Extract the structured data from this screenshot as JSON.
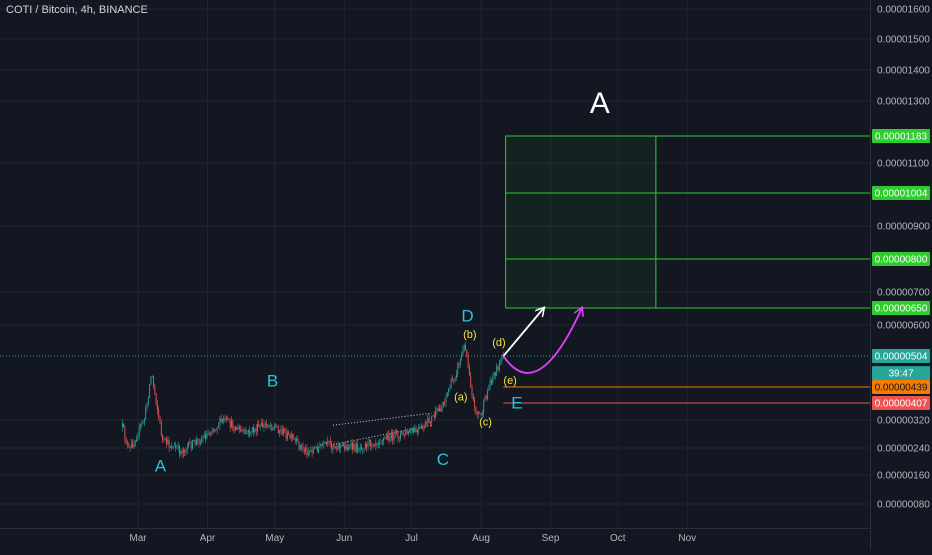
{
  "header": {
    "symbol_title": "COTI / Bitcoin, 4h, BINANCE"
  },
  "colors": {
    "background": "#131722",
    "grid": "#1f2430",
    "up": "#26a69a",
    "down": "#ef5350",
    "wave_label": "#26c6da",
    "sub_wave_label": "#f5e342",
    "target_zone": "#2ecc2e",
    "price_line": "#26a69a",
    "projection_white": "#ffffff",
    "projection_magenta": "#e040fb"
  },
  "chart_data": {
    "type": "candlestick",
    "timeframe": "4h",
    "ylim": [
      4e-07,
      1.65e-05
    ],
    "y_ticks": [
      "0.00001600",
      "0.00001500",
      "0.00001400",
      "0.00001300",
      "0.00001100",
      "0.00000900",
      "0.00000700",
      "0.00000600",
      "0.00000320",
      "0.00000240",
      "0.00000160",
      "0.00000080"
    ],
    "x_ticks": [
      "Mar",
      "Apr",
      "May",
      "Jun",
      "Jul",
      "Aug",
      "Sep",
      "Oct",
      "Nov"
    ],
    "price_path": [
      {
        "date": "Feb 23",
        "price": 3e-06
      },
      {
        "date": "Feb 26",
        "price": 2.3e-06
      },
      {
        "date": "Mar 4",
        "price": 3.3e-06
      },
      {
        "date": "Mar 7",
        "price": 4.7e-06
      },
      {
        "date": "Mar 12",
        "price": 2.6e-06
      },
      {
        "date": "Mar 20",
        "price": 2.3e-06
      },
      {
        "date": "Mar 30",
        "price": 2.7e-06
      },
      {
        "date": "Apr 8",
        "price": 3.2e-06
      },
      {
        "date": "Apr 18",
        "price": 2.8e-06
      },
      {
        "date": "Apr 28",
        "price": 3.1e-06
      },
      {
        "date": "May 4",
        "price": 2.9e-06
      },
      {
        "date": "May 15",
        "price": 2.3e-06
      },
      {
        "date": "May 25",
        "price": 2.5e-06
      },
      {
        "date": "Jun 6",
        "price": 2.4e-06
      },
      {
        "date": "Jun 20",
        "price": 2.7e-06
      },
      {
        "date": "Jul 5",
        "price": 2.9e-06
      },
      {
        "date": "Jul 14",
        "price": 3.8e-06
      },
      {
        "date": "Jul 20",
        "price": 4.6e-06
      },
      {
        "date": "Jul 25",
        "price": 5.4e-06
      },
      {
        "date": "Jul 29",
        "price": 3.8e-06
      },
      {
        "date": "Aug 1",
        "price": 3.4e-06
      },
      {
        "date": "Aug 5",
        "price": 4.5e-06
      },
      {
        "date": "Aug 11",
        "price": 5.04e-06
      }
    ],
    "wave_labels": [
      {
        "text": "A",
        "date": "Mar 11",
        "price": 1.7e-06,
        "style": "wave"
      },
      {
        "text": "B",
        "date": "Apr 30",
        "price": 4.4e-06,
        "style": "wave"
      },
      {
        "text": "C",
        "date": "Jul 15",
        "price": 1.9e-06,
        "style": "wave"
      },
      {
        "text": "D",
        "date": "Jul 26",
        "price": 6.1e-06,
        "style": "wave"
      },
      {
        "text": "E",
        "date": "Aug 17",
        "price": 3.8e-06,
        "style": "wave"
      },
      {
        "text": "A",
        "date": "Sep 23",
        "price": 1.26e-05,
        "style": "big"
      },
      {
        "text": "(a)",
        "date": "Jul 23",
        "price": 4.12e-06,
        "style": "sub"
      },
      {
        "text": "(b)",
        "date": "Jul 27",
        "price": 5.6e-06,
        "style": "sub"
      },
      {
        "text": "(c)",
        "date": "Aug 3",
        "price": 3.05e-06,
        "style": "sub"
      },
      {
        "text": "(d)",
        "date": "Aug 9",
        "price": 5.35e-06,
        "style": "sub"
      },
      {
        "text": "(e)",
        "date": "Aug 14",
        "price": 4.45e-06,
        "style": "sub"
      }
    ],
    "target_zone": {
      "x_start": "Aug 12",
      "x_end": "Oct 18",
      "levels": [
        1.183e-05,
        1.004e-05,
        8e-06,
        6.5e-06
      ]
    },
    "horizontal_lines": [
      {
        "price": 5.04e-06,
        "color": "#26a69a",
        "style": "dotted"
      },
      {
        "price": 4.39e-06,
        "color": "#f57c00",
        "style": "solid",
        "from": "Aug 11"
      },
      {
        "price": 4.07e-06,
        "color": "#ef5350",
        "style": "solid",
        "from": "Aug 11"
      }
    ],
    "price_labels": [
      {
        "text": "0.00001183",
        "color": "#2ecc2e",
        "price": 1.183e-05
      },
      {
        "text": "0.00001004",
        "color": "#2ecc2e",
        "price": 1.004e-05
      },
      {
        "text": "0.00000800",
        "color": "#2ecc2e",
        "price": 8e-06
      },
      {
        "text": "0.00000650",
        "color": "#2ecc2e",
        "price": 6.5e-06
      },
      {
        "text": "0.00000504",
        "color": "#26a69a",
        "price": 5.04e-06
      },
      {
        "text": "39:47",
        "color": "#26a69a",
        "price": 4.68e-06
      },
      {
        "text": "0.00000439",
        "color": "#f57c00",
        "price": 4.39e-06
      },
      {
        "text": "0.00000407",
        "color": "#ef5350",
        "price": 4.07e-06
      }
    ],
    "projections": [
      {
        "type": "arrow",
        "color": "#ffffff",
        "from": {
          "date": "Aug 11",
          "price": 5.04e-06
        },
        "to": {
          "date": "Aug 29",
          "price": 6.5e-06
        }
      },
      {
        "type": "curve",
        "color": "#e040fb",
        "from": {
          "date": "Aug 11",
          "price": 5.04e-06
        },
        "to": {
          "date": "Sep 15",
          "price": 6.5e-06
        }
      }
    ],
    "channel": {
      "from_date": "May 27",
      "to_date": "Jul 10",
      "lower": [
        2.5e-06,
        3.05e-06
      ],
      "upper": [
        3.05e-06,
        3.55e-06
      ]
    }
  }
}
